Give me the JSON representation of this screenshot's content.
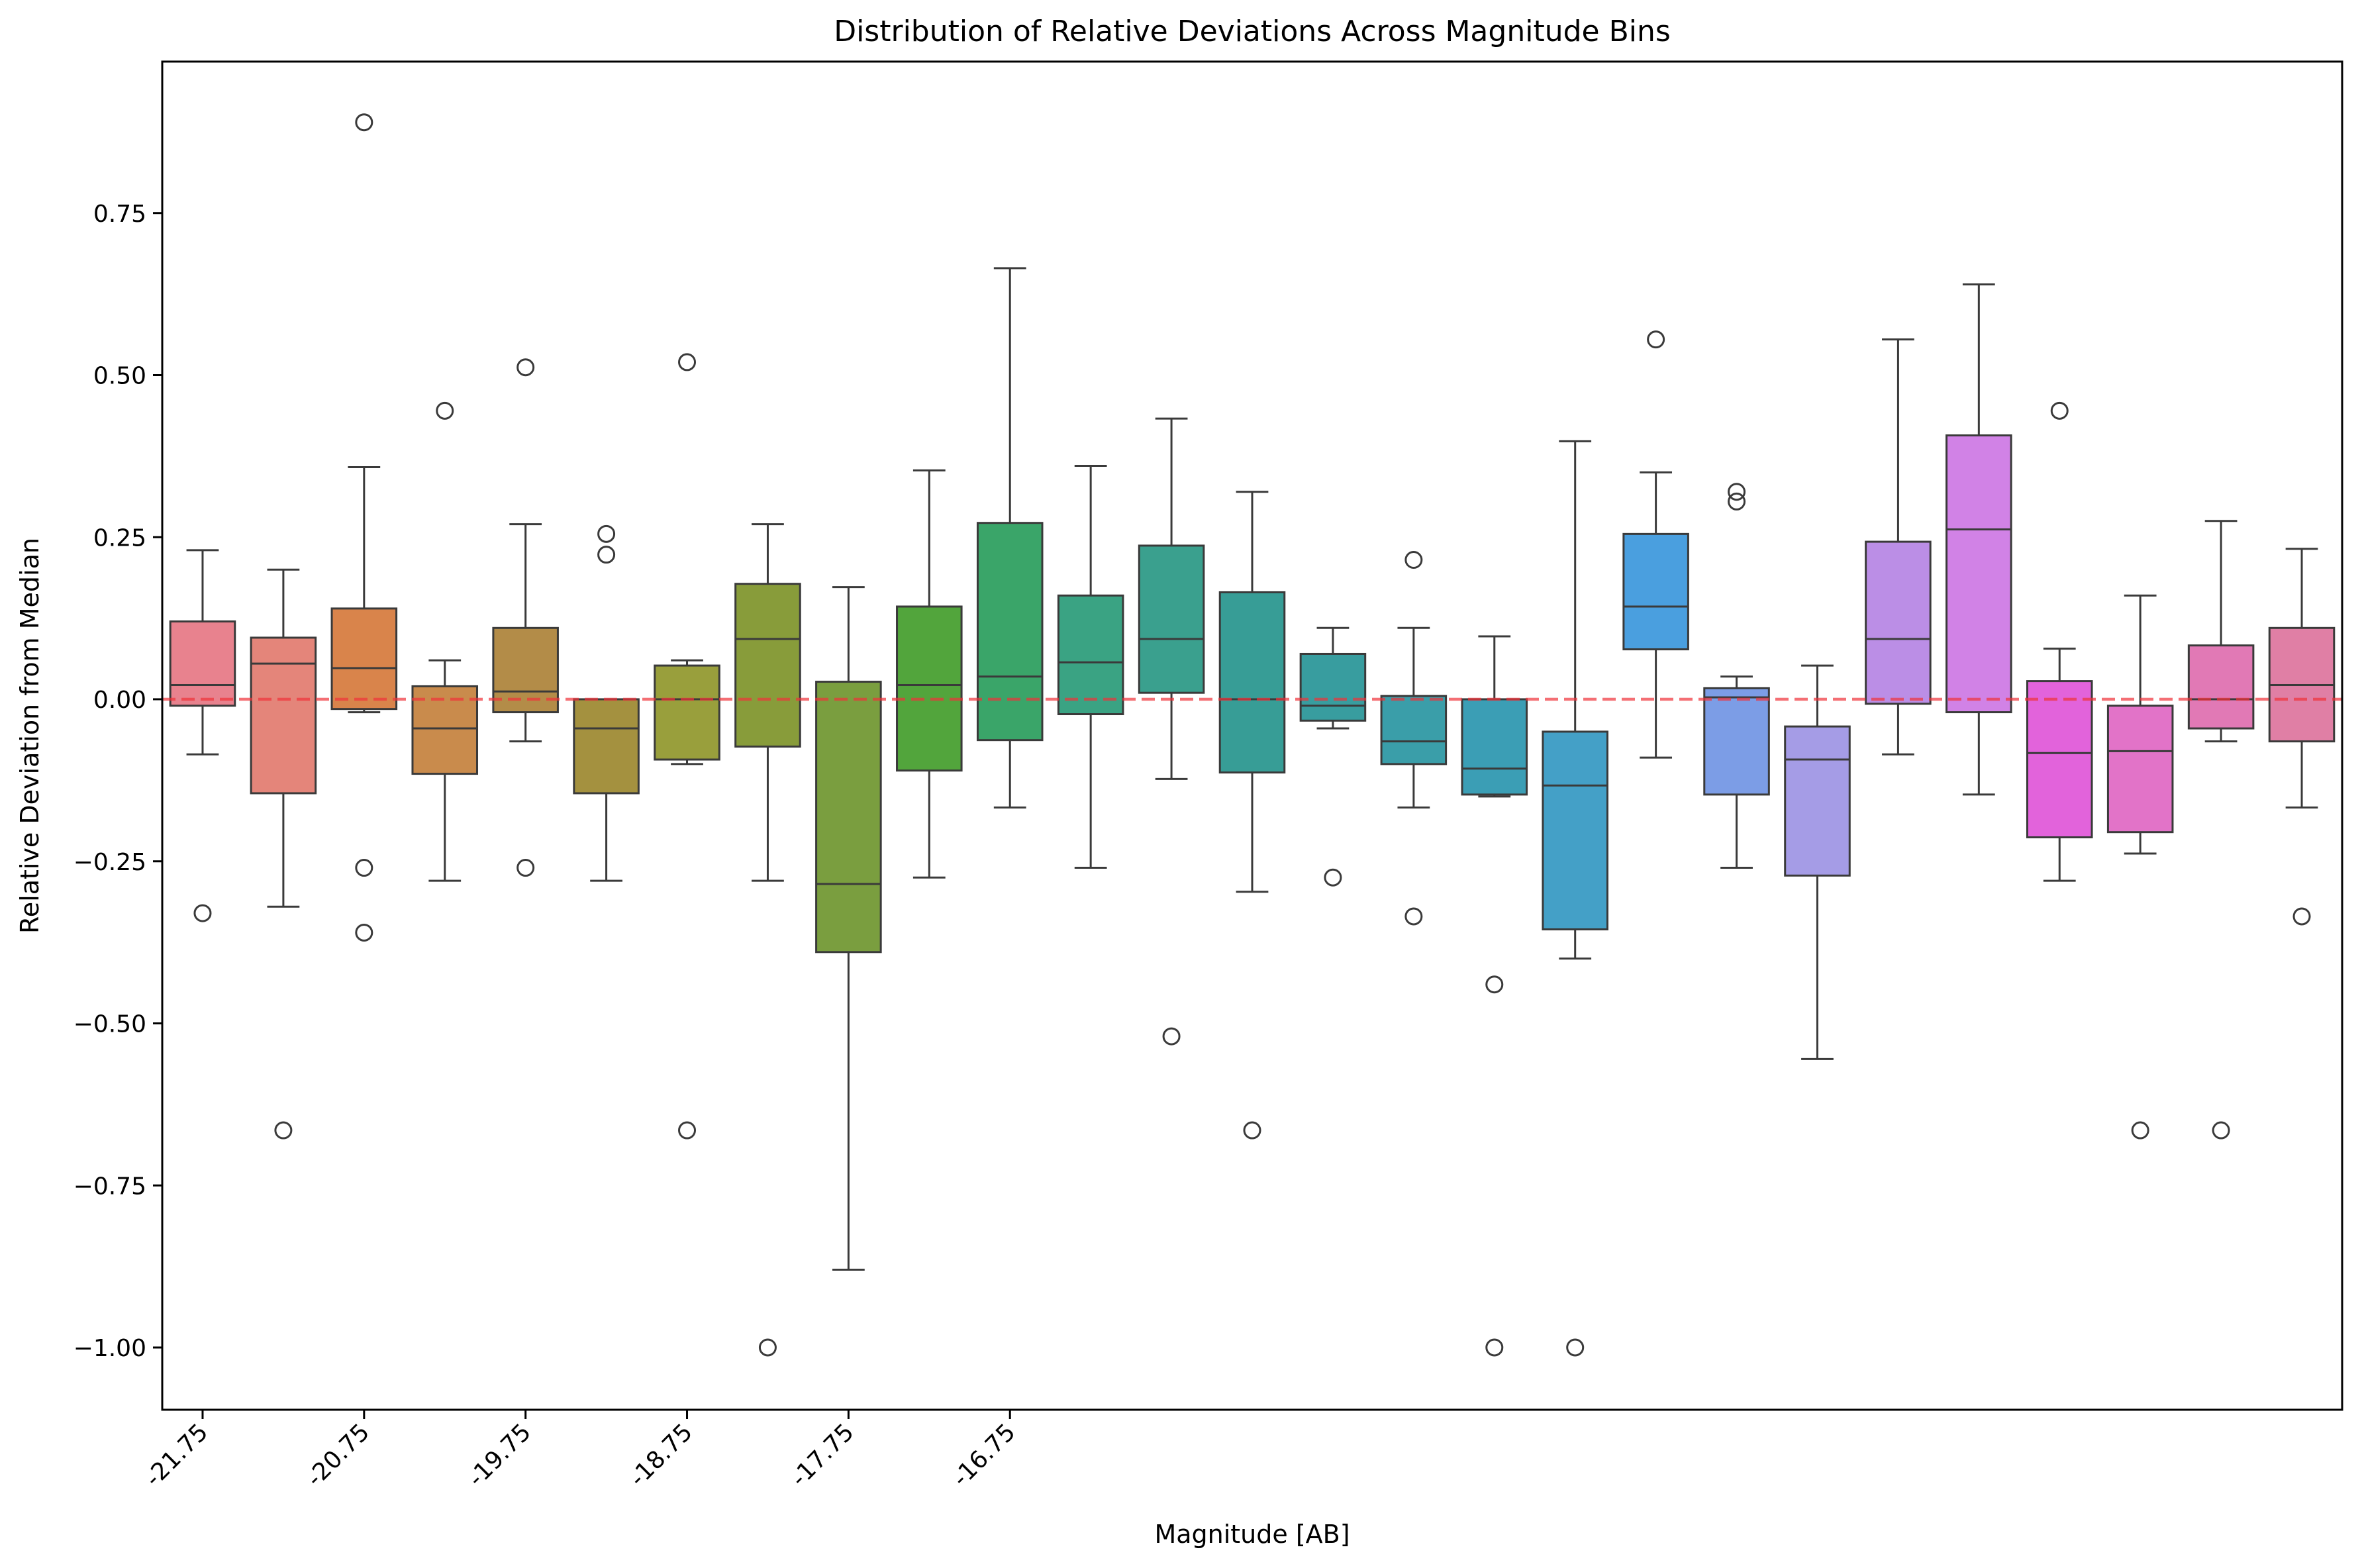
{
  "chart_data": {
    "type": "box",
    "title": "Distribution of Relative Deviations Across Magnitude Bins",
    "xlabel": "Magnitude [AB]",
    "ylabel": "Relative Deviation from Median",
    "ylim": [
      -1.1,
      0.98
    ],
    "yticks": [
      {
        "value": 0.75,
        "label": "0.75"
      },
      {
        "value": 0.5,
        "label": "0.50"
      },
      {
        "value": 0.25,
        "label": "0.25"
      },
      {
        "value": 0.0,
        "label": "0.00"
      },
      {
        "value": -0.25,
        "label": "−0.25"
      },
      {
        "value": -0.5,
        "label": "−0.50"
      },
      {
        "value": -0.75,
        "label": "−0.75"
      },
      {
        "value": -1.0,
        "label": "−1.00"
      }
    ],
    "xticks": [
      {
        "index": 0,
        "label": "-21.75"
      },
      {
        "index": 2,
        "label": "-20.75"
      },
      {
        "index": 4,
        "label": "-19.75"
      },
      {
        "index": 6,
        "label": "-18.75"
      },
      {
        "index": 8,
        "label": "-17.75"
      },
      {
        "index": 10,
        "label": "-16.75"
      }
    ],
    "reference_line": {
      "y": 0,
      "style": "dashed",
      "color": "#f0333a"
    },
    "grid": false,
    "boxes": [
      {
        "q1": -0.01,
        "median": 0.022,
        "q3": 0.12,
        "whisker_low": -0.085,
        "whisker_high": 0.23,
        "outliers": [
          -0.33
        ],
        "color": "#e8828e"
      },
      {
        "q1": -0.145,
        "median": 0.055,
        "q3": 0.095,
        "whisker_low": -0.32,
        "whisker_high": 0.2,
        "outliers": [
          -0.665
        ],
        "color": "#e4857a"
      },
      {
        "q1": -0.015,
        "median": 0.048,
        "q3": 0.14,
        "whisker_low": -0.02,
        "whisker_high": 0.358,
        "outliers": [
          0.89,
          -0.26,
          -0.36
        ],
        "color": "#d9844b"
      },
      {
        "q1": -0.115,
        "median": -0.045,
        "q3": 0.02,
        "whisker_low": -0.28,
        "whisker_high": 0.06,
        "outliers": [
          0.445
        ],
        "color": "#c98b4c"
      },
      {
        "q1": -0.02,
        "median": 0.012,
        "q3": 0.11,
        "whisker_low": -0.065,
        "whisker_high": 0.27,
        "outliers": [
          0.512,
          -0.26
        ],
        "color": "#b38c48"
      },
      {
        "q1": -0.145,
        "median": -0.045,
        "q3": 0.0,
        "whisker_low": -0.28,
        "whisker_high": 0.0,
        "outliers": [
          0.255,
          0.223
        ],
        "color": "#a4913f"
      },
      {
        "q1": -0.093,
        "median": 0.0,
        "q3": 0.052,
        "whisker_low": -0.1,
        "whisker_high": 0.06,
        "outliers": [
          0.52,
          -0.665
        ],
        "color": "#999f3c"
      },
      {
        "q1": -0.073,
        "median": 0.093,
        "q3": 0.178,
        "whisker_low": -0.28,
        "whisker_high": 0.27,
        "outliers": [
          -1.0
        ],
        "color": "#889c3a"
      },
      {
        "q1": -0.39,
        "median": -0.285,
        "q3": 0.027,
        "whisker_low": -0.88,
        "whisker_high": 0.173,
        "outliers": [],
        "color": "#7a9e3f"
      },
      {
        "q1": -0.11,
        "median": 0.022,
        "q3": 0.143,
        "whisker_low": -0.275,
        "whisker_high": 0.353,
        "outliers": [],
        "color": "#52a53c"
      },
      {
        "q1": -0.063,
        "median": 0.035,
        "q3": 0.272,
        "whisker_low": -0.167,
        "whisker_high": 0.665,
        "outliers": [],
        "color": "#3aa569"
      },
      {
        "q1": -0.023,
        "median": 0.057,
        "q3": 0.16,
        "whisker_low": -0.26,
        "whisker_high": 0.36,
        "outliers": [],
        "color": "#3aa383"
      },
      {
        "q1": 0.01,
        "median": 0.093,
        "q3": 0.237,
        "whisker_low": -0.123,
        "whisker_high": 0.433,
        "outliers": [
          -0.52
        ],
        "color": "#3aa08e"
      },
      {
        "q1": -0.113,
        "median": 0.0,
        "q3": 0.165,
        "whisker_low": -0.297,
        "whisker_high": 0.32,
        "outliers": [
          -0.665
        ],
        "color": "#379d96"
      },
      {
        "q1": -0.033,
        "median": -0.01,
        "q3": 0.07,
        "whisker_low": -0.045,
        "whisker_high": 0.11,
        "outliers": [
          -0.275
        ],
        "color": "#389d9f"
      },
      {
        "q1": -0.1,
        "median": -0.065,
        "q3": 0.005,
        "whisker_low": -0.167,
        "whisker_high": 0.11,
        "outliers": [
          0.215,
          -0.335
        ],
        "color": "#3a9ea9"
      },
      {
        "q1": -0.147,
        "median": -0.107,
        "q3": 0.0,
        "whisker_low": -0.15,
        "whisker_high": 0.097,
        "outliers": [
          -0.44,
          -1.0
        ],
        "color": "#3b9eb5"
      },
      {
        "q1": -0.355,
        "median": -0.133,
        "q3": -0.05,
        "whisker_low": -0.4,
        "whisker_high": 0.398,
        "outliers": [
          -1.0
        ],
        "color": "#44a0c7"
      },
      {
        "q1": 0.077,
        "median": 0.143,
        "q3": 0.255,
        "whisker_low": -0.09,
        "whisker_high": 0.35,
        "outliers": [
          0.555
        ],
        "color": "#4a9fdf"
      },
      {
        "q1": -0.147,
        "median": 0.003,
        "q3": 0.017,
        "whisker_low": -0.26,
        "whisker_high": 0.035,
        "outliers": [
          0.32,
          0.305
        ],
        "color": "#7c9de6"
      },
      {
        "q1": -0.272,
        "median": -0.093,
        "q3": -0.042,
        "whisker_low": -0.555,
        "whisker_high": 0.052,
        "outliers": [],
        "color": "#a59ce6"
      },
      {
        "q1": -0.007,
        "median": 0.093,
        "q3": 0.243,
        "whisker_low": -0.085,
        "whisker_high": 0.555,
        "outliers": [],
        "color": "#bb8ee6"
      },
      {
        "q1": -0.02,
        "median": 0.262,
        "q3": 0.407,
        "whisker_low": -0.147,
        "whisker_high": 0.64,
        "outliers": [],
        "color": "#d182e6"
      },
      {
        "q1": -0.213,
        "median": -0.083,
        "q3": 0.028,
        "whisker_low": -0.28,
        "whisker_high": 0.078,
        "outliers": [
          0.445
        ],
        "color": "#e263db"
      },
      {
        "q1": -0.205,
        "median": -0.08,
        "q3": -0.01,
        "whisker_low": -0.238,
        "whisker_high": 0.16,
        "outliers": [
          -0.665
        ],
        "color": "#e273c8"
      },
      {
        "q1": -0.045,
        "median": 0.0,
        "q3": 0.083,
        "whisker_low": -0.065,
        "whisker_high": 0.275,
        "outliers": [
          -0.665
        ],
        "color": "#e179b5"
      },
      {
        "q1": -0.065,
        "median": 0.022,
        "q3": 0.11,
        "whisker_low": -0.167,
        "whisker_high": 0.232,
        "outliers": [
          -0.335
        ],
        "color": "#e07fa5"
      }
    ]
  }
}
